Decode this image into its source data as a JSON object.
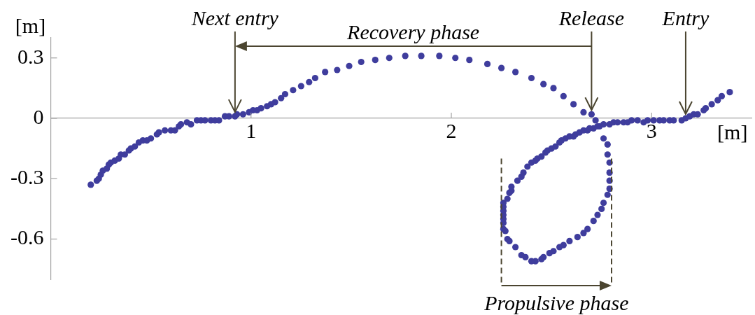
{
  "chart_data": {
    "type": "scatter",
    "xlabel": "[m]",
    "ylabel": "[m]",
    "color": "#3f3d9d",
    "marker": "circle",
    "x": [
      0.2,
      0.23,
      0.24,
      0.25,
      0.26,
      0.28,
      0.29,
      0.3,
      0.32,
      0.34,
      0.35,
      0.37,
      0.39,
      0.4,
      0.42,
      0.44,
      0.46,
      0.48,
      0.5,
      0.53,
      0.54,
      0.57,
      0.6,
      0.62,
      0.64,
      0.65,
      0.68,
      0.7,
      0.73,
      0.75,
      0.77,
      0.8,
      0.82,
      0.84,
      0.87,
      0.89,
      0.92,
      0.93,
      0.96,
      0.99,
      1.01,
      1.03,
      1.05,
      1.08,
      1.1,
      1.12,
      1.15,
      1.17,
      1.21,
      1.25,
      1.29,
      1.32,
      1.37,
      1.43,
      1.49,
      1.55,
      1.62,
      1.69,
      1.77,
      1.85,
      1.94,
      2.02,
      2.09,
      2.18,
      2.25,
      2.32,
      2.4,
      2.46,
      2.51,
      2.56,
      2.61,
      2.66,
      2.7,
      2.72,
      2.74,
      2.76,
      2.78,
      2.78,
      2.79,
      2.79,
      2.79,
      2.79,
      2.78,
      2.76,
      2.75,
      2.73,
      2.71,
      2.68,
      2.66,
      2.63,
      2.59,
      2.56,
      2.54,
      2.51,
      2.49,
      2.46,
      2.45,
      2.42,
      2.4,
      2.37,
      2.35,
      2.32,
      2.29,
      2.28,
      2.27,
      2.26,
      2.26,
      2.26,
      2.26,
      2.26,
      2.26,
      2.26,
      2.28,
      2.29,
      2.3,
      2.3,
      2.33,
      2.35,
      2.36,
      2.38,
      2.4,
      2.42,
      2.43,
      2.45,
      2.47,
      2.48,
      2.5,
      2.52,
      2.54,
      2.55,
      2.57,
      2.59,
      2.61,
      2.62,
      2.64,
      2.66,
      2.68,
      2.69,
      2.71,
      2.73,
      2.76,
      2.79,
      2.81,
      2.83,
      2.86,
      2.88,
      2.9,
      2.93,
      2.96,
      2.98,
      3.01,
      3.04,
      3.06,
      3.09,
      3.11,
      3.15,
      3.17,
      3.19,
      3.21,
      3.23,
      3.26,
      3.27,
      3.3,
      3.33,
      3.35,
      3.39
    ],
    "values": [
      -0.33,
      -0.31,
      -0.3,
      -0.28,
      -0.26,
      -0.25,
      -0.23,
      -0.22,
      -0.21,
      -0.2,
      -0.18,
      -0.18,
      -0.16,
      -0.15,
      -0.14,
      -0.12,
      -0.11,
      -0.11,
      -0.1,
      -0.08,
      -0.07,
      -0.06,
      -0.06,
      -0.06,
      -0.04,
      -0.03,
      -0.02,
      -0.03,
      -0.01,
      -0.01,
      -0.01,
      -0.01,
      -0.01,
      -0.01,
      0.01,
      0.01,
      0.01,
      0.02,
      0.02,
      0.03,
      0.04,
      0.04,
      0.05,
      0.06,
      0.07,
      0.08,
      0.1,
      0.12,
      0.14,
      0.16,
      0.18,
      0.2,
      0.23,
      0.24,
      0.26,
      0.28,
      0.29,
      0.3,
      0.31,
      0.31,
      0.31,
      0.3,
      0.29,
      0.27,
      0.25,
      0.23,
      0.2,
      0.17,
      0.15,
      0.11,
      0.07,
      0.03,
      0.02,
      -0.01,
      -0.04,
      -0.1,
      -0.13,
      -0.18,
      -0.22,
      -0.27,
      -0.31,
      -0.35,
      -0.38,
      -0.42,
      -0.45,
      -0.48,
      -0.51,
      -0.55,
      -0.57,
      -0.59,
      -0.61,
      -0.63,
      -0.64,
      -0.66,
      -0.67,
      -0.69,
      -0.7,
      -0.71,
      -0.71,
      -0.69,
      -0.68,
      -0.64,
      -0.61,
      -0.6,
      -0.56,
      -0.55,
      -0.52,
      -0.5,
      -0.48,
      -0.46,
      -0.44,
      -0.42,
      -0.4,
      -0.37,
      -0.36,
      -0.34,
      -0.31,
      -0.29,
      -0.27,
      -0.24,
      -0.22,
      -0.21,
      -0.2,
      -0.19,
      -0.17,
      -0.16,
      -0.15,
      -0.14,
      -0.12,
      -0.11,
      -0.1,
      -0.09,
      -0.09,
      -0.08,
      -0.07,
      -0.06,
      -0.06,
      -0.05,
      -0.05,
      -0.04,
      -0.03,
      -0.03,
      -0.02,
      -0.02,
      -0.02,
      -0.02,
      -0.01,
      -0.01,
      -0.02,
      -0.01,
      -0.01,
      -0.01,
      -0.01,
      -0.01,
      -0.01,
      -0.01,
      0.0,
      0.01,
      0.02,
      0.02,
      0.04,
      0.05,
      0.07,
      0.09,
      0.11,
      0.13
    ],
    "xlim": [
      0,
      3.5
    ],
    "ylim": [
      -0.8,
      0.4
    ],
    "xticks": [
      1,
      2,
      3
    ],
    "yticks": [
      -0.6,
      -0.3,
      0,
      0.3
    ],
    "annotations": [
      {
        "text": "Next entry",
        "x": 0.92,
        "y": 0.01
      },
      {
        "text": "Release",
        "x": 2.7,
        "y": 0.02
      },
      {
        "text": "Entry",
        "x": 3.17,
        "y": 0.0
      },
      "Recovery phase",
      "Propulsive phase"
    ],
    "ref_lines": [
      {
        "axis": "x",
        "value": 2.25,
        "color": "#4b4530",
        "line_style": "dashed"
      },
      {
        "axis": "x",
        "value": 2.8,
        "color": "#4b4530",
        "line_style": "dashed"
      }
    ]
  }
}
